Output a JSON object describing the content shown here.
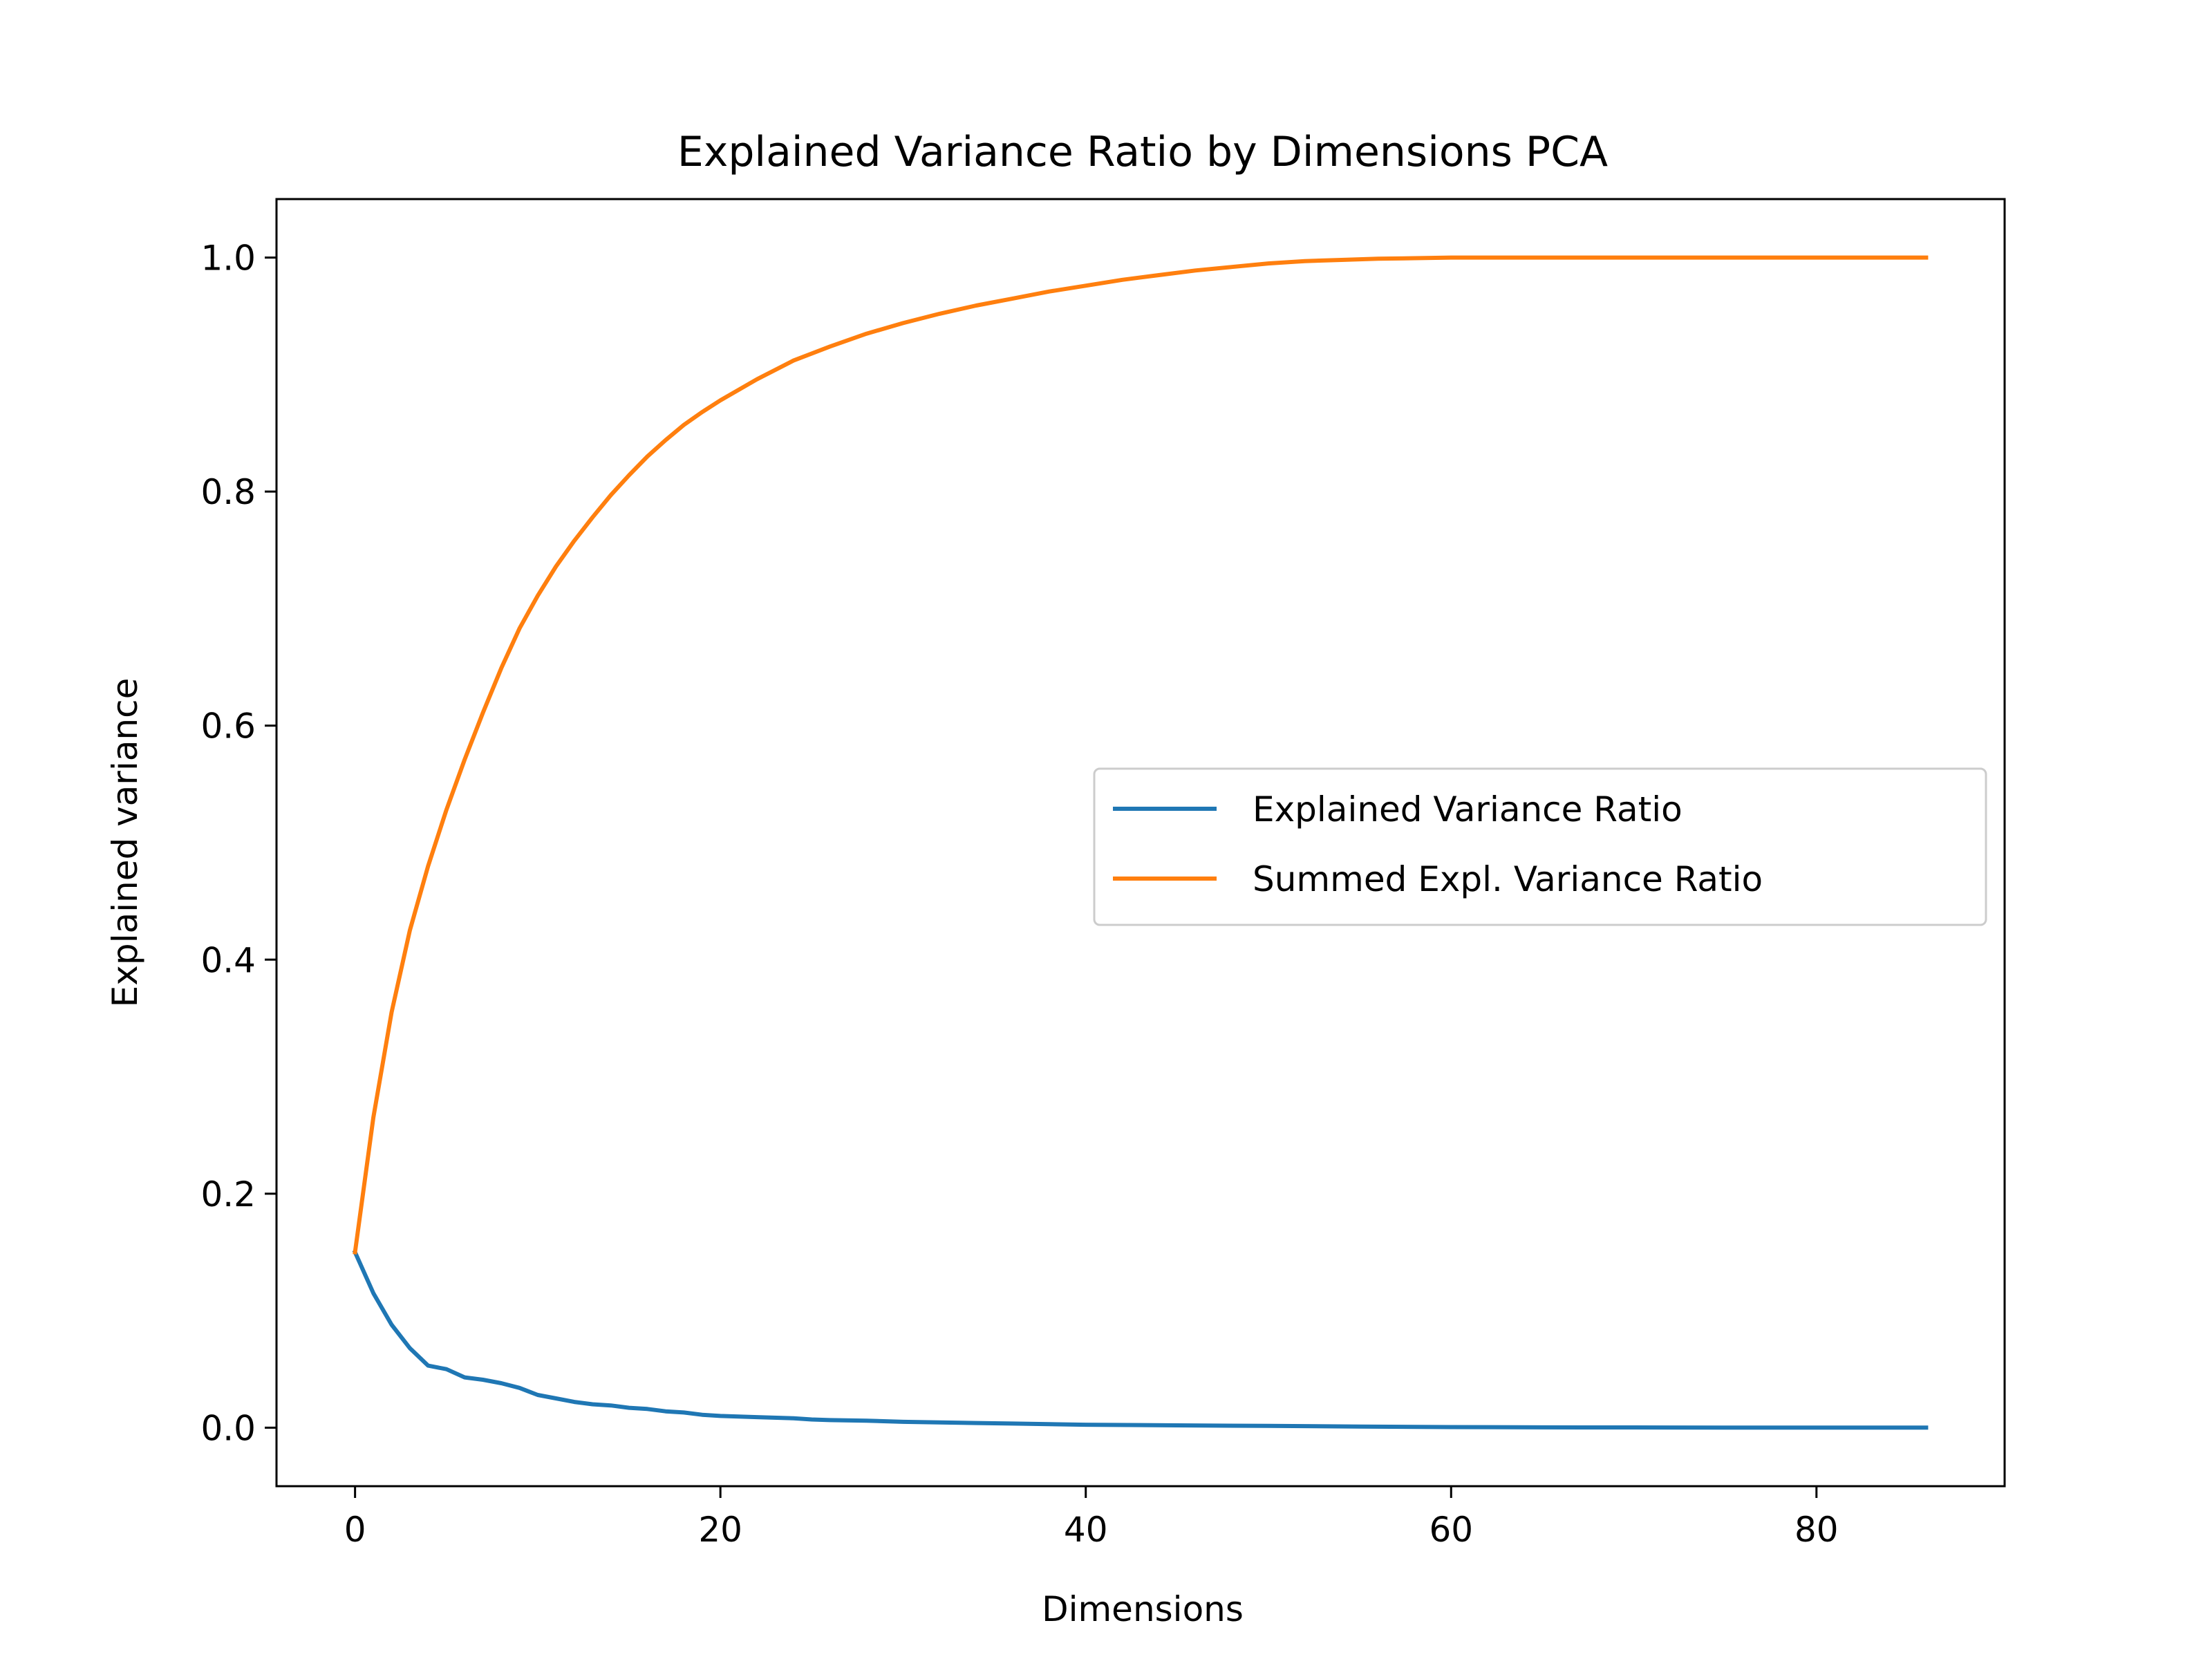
{
  "chart_data": {
    "type": "line",
    "title": "Explained Variance Ratio by Dimensions PCA",
    "xlabel": "Dimensions",
    "ylabel": "Explained variance",
    "xlim": [
      -4.3,
      90.3
    ],
    "ylim": [
      -0.05,
      1.05
    ],
    "xticks": [
      {
        "value": 0,
        "label": "0"
      },
      {
        "value": 20,
        "label": "20"
      },
      {
        "value": 40,
        "label": "40"
      },
      {
        "value": 60,
        "label": "60"
      },
      {
        "value": 80,
        "label": "80"
      }
    ],
    "yticks": [
      {
        "value": 0.0,
        "label": "0.0"
      },
      {
        "value": 0.2,
        "label": "0.2"
      },
      {
        "value": 0.4,
        "label": "0.4"
      },
      {
        "value": 0.6,
        "label": "0.6"
      },
      {
        "value": 0.8,
        "label": "0.8"
      },
      {
        "value": 1.0,
        "label": "1.0"
      }
    ],
    "grid": false,
    "legend_position": "center-right",
    "series": [
      {
        "name": "Explained Variance Ratio",
        "color": "#1f77b4",
        "x": [
          0,
          1,
          2,
          3,
          4,
          5,
          6,
          7,
          8,
          9,
          10,
          11,
          12,
          13,
          14,
          15,
          16,
          17,
          18,
          19,
          20,
          22,
          24,
          25,
          26,
          28,
          30,
          32,
          34,
          36,
          38,
          40,
          45,
          50,
          55,
          60,
          65,
          70,
          75,
          80,
          86
        ],
        "y": [
          0.15,
          0.115,
          0.088,
          0.068,
          0.053,
          0.05,
          0.043,
          0.041,
          0.038,
          0.034,
          0.028,
          0.025,
          0.022,
          0.02,
          0.019,
          0.017,
          0.016,
          0.014,
          0.013,
          0.011,
          0.01,
          0.009,
          0.008,
          0.007,
          0.0065,
          0.006,
          0.005,
          0.0045,
          0.004,
          0.0035,
          0.003,
          0.0025,
          0.002,
          0.0015,
          0.001,
          0.0005,
          0.0003,
          0.0002,
          0.0001,
          0.0001,
          0.0001
        ]
      },
      {
        "name": "Summed Expl. Variance Ratio",
        "color": "#ff7f0e",
        "x": [
          0,
          1,
          2,
          3,
          4,
          5,
          6,
          7,
          8,
          9,
          10,
          11,
          12,
          13,
          14,
          15,
          16,
          17,
          18,
          19,
          20,
          22,
          24,
          26,
          28,
          30,
          32,
          34,
          36,
          38,
          40,
          42,
          44,
          46,
          48,
          50,
          52,
          54,
          56,
          58,
          60,
          65,
          70,
          75,
          80,
          86
        ],
        "y": [
          0.15,
          0.265,
          0.355,
          0.425,
          0.48,
          0.528,
          0.571,
          0.611,
          0.649,
          0.683,
          0.711,
          0.736,
          0.758,
          0.778,
          0.797,
          0.814,
          0.83,
          0.844,
          0.857,
          0.868,
          0.878,
          0.896,
          0.912,
          0.924,
          0.935,
          0.944,
          0.952,
          0.959,
          0.965,
          0.971,
          0.976,
          0.981,
          0.985,
          0.989,
          0.992,
          0.995,
          0.997,
          0.998,
          0.999,
          0.9995,
          1.0,
          1.0,
          1.0,
          1.0,
          1.0,
          1.0
        ]
      }
    ]
  }
}
